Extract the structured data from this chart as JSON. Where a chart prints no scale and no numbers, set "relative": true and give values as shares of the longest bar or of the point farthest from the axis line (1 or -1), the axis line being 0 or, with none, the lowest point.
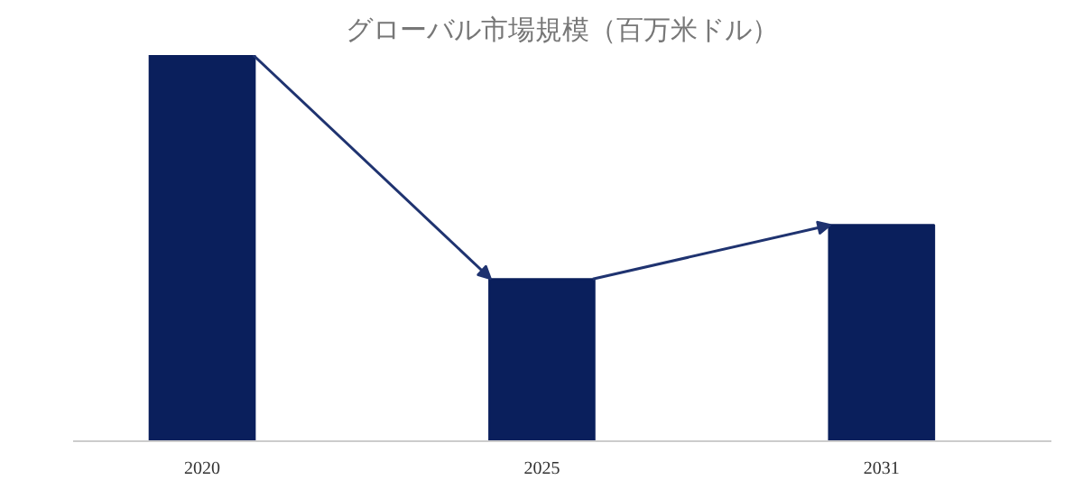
{
  "chart_data": {
    "type": "bar",
    "title": "グローバル市場規模（百万米ドル）",
    "categories": [
      "2020",
      "2025",
      "2031"
    ],
    "values": [
      1,
      0.42,
      0.56
    ],
    "color": "#0a1f5c",
    "relative": true,
    "grid": false
  }
}
